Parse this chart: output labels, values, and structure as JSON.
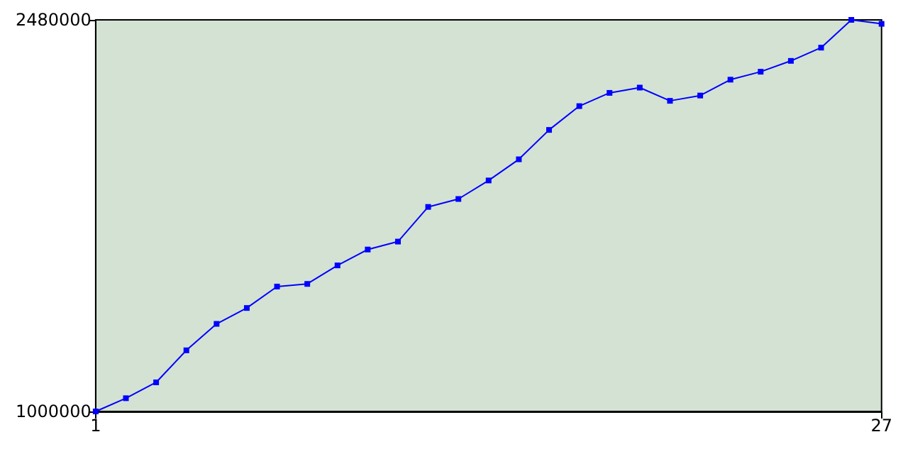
{
  "chart_data": {
    "type": "line",
    "x": [
      1,
      2,
      3,
      4,
      5,
      6,
      7,
      8,
      9,
      10,
      11,
      12,
      13,
      14,
      15,
      16,
      17,
      18,
      19,
      20,
      21,
      22,
      23,
      24,
      25,
      26,
      27
    ],
    "series": [
      {
        "color": "#0000ff",
        "values": [
          1000000,
          1050000,
          1110000,
          1231000,
          1331000,
          1391000,
          1472000,
          1482000,
          1552000,
          1612000,
          1642000,
          1773000,
          1803000,
          1873000,
          1953000,
          2064000,
          2154000,
          2204000,
          2224000,
          2174000,
          2194000,
          2254000,
          2284000,
          2325000,
          2375000,
          2480000,
          2465000
        ]
      }
    ],
    "xlim": [
      1,
      27
    ],
    "xticks": [
      1,
      27
    ],
    "ylim": [
      1000000,
      2480000
    ],
    "yticks": [
      1000000,
      2480000
    ],
    "grid": false,
    "marker": "square",
    "line_style": "solid"
  }
}
